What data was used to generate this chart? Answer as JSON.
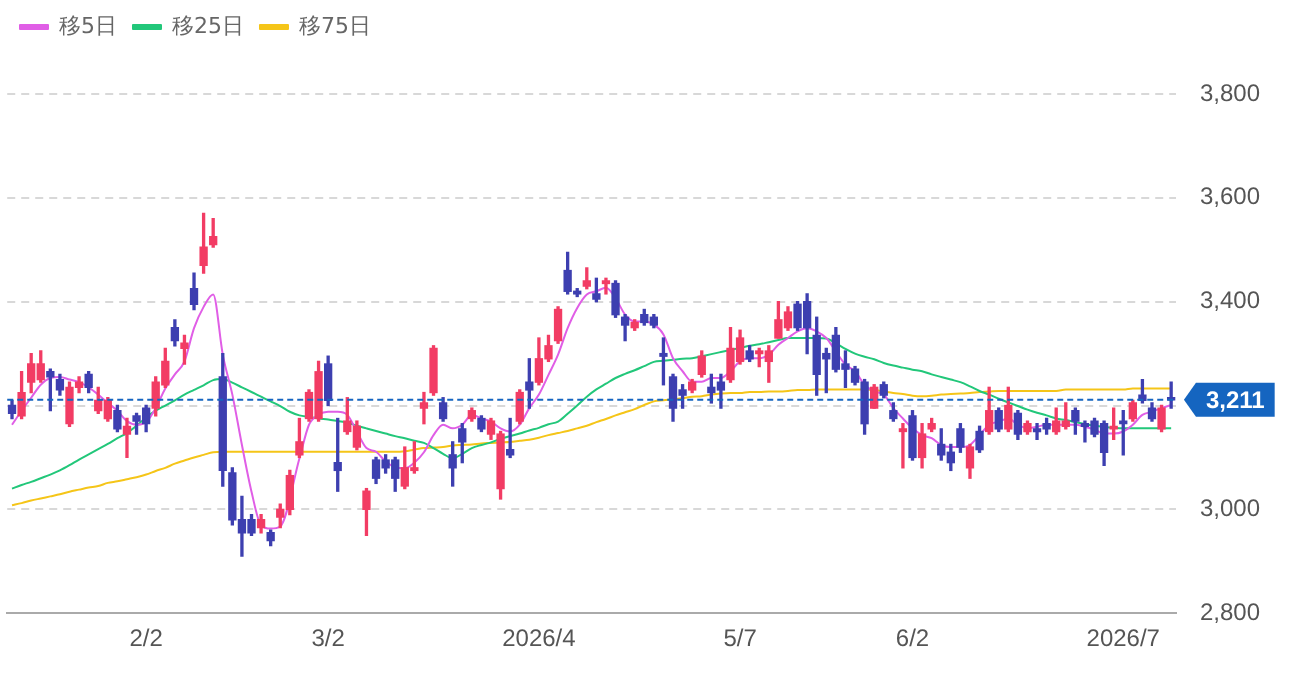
{
  "chart_data": {
    "type": "candlestick",
    "categories": [
      null,
      null,
      null,
      null,
      null,
      null,
      null,
      null,
      null,
      null,
      null,
      null,
      null,
      null,
      "2/2",
      null,
      null,
      null,
      null,
      null,
      null,
      null,
      null,
      null,
      null,
      null,
      null,
      null,
      null,
      null,
      null,
      null,
      null,
      "3/2",
      null,
      null,
      null,
      null,
      null,
      null,
      null,
      null,
      null,
      null,
      null,
      null,
      null,
      null,
      null,
      null,
      null,
      null,
      null,
      null,
      null,
      "2026/4",
      null,
      null,
      null,
      null,
      null,
      null,
      null,
      null,
      null,
      null,
      null,
      null,
      null,
      null,
      null,
      null,
      null,
      null,
      null,
      null,
      "5/7",
      null,
      null,
      null,
      null,
      null,
      null,
      null,
      null,
      null,
      null,
      null,
      null,
      null,
      null,
      null,
      null,
      null,
      "6/2",
      null,
      null,
      null,
      null,
      null,
      null,
      null,
      null,
      null,
      null,
      null,
      null,
      null,
      null,
      null,
      null,
      null,
      null,
      null,
      null,
      null,
      "2026/7",
      null,
      null,
      null,
      null,
      null
    ],
    "ohlc": [
      [
        3200,
        3210,
        3175,
        3185
      ],
      [
        3180,
        3265,
        3175,
        3225
      ],
      [
        3245,
        3300,
        3225,
        3280
      ],
      [
        3250,
        3305,
        3245,
        3280
      ],
      [
        3265,
        3270,
        3190,
        3255
      ],
      [
        3250,
        3260,
        3220,
        3230
      ],
      [
        3165,
        3245,
        3160,
        3235
      ],
      [
        3235,
        3255,
        3225,
        3245
      ],
      [
        3260,
        3265,
        3225,
        3235
      ],
      [
        3190,
        3235,
        3185,
        3210
      ],
      [
        3175,
        3215,
        3170,
        3210
      ],
      [
        3190,
        3200,
        3150,
        3155
      ],
      [
        3145,
        3175,
        3100,
        3160
      ],
      [
        3180,
        3185,
        3145,
        3170
      ],
      [
        3195,
        3200,
        3150,
        3165
      ],
      [
        3195,
        3255,
        3180,
        3245
      ],
      [
        3240,
        3310,
        3235,
        3285
      ],
      [
        3350,
        3365,
        3315,
        3325
      ],
      [
        3310,
        3335,
        3280,
        3320
      ],
      [
        3425,
        3455,
        3385,
        3395
      ],
      [
        3470,
        3570,
        3455,
        3505
      ],
      [
        3510,
        3560,
        3505,
        3525
      ],
      [
        3255,
        3300,
        3045,
        3075
      ],
      [
        3070,
        3080,
        2970,
        2980
      ],
      [
        2980,
        3025,
        2910,
        2955
      ],
      [
        2980,
        2990,
        2950,
        2955
      ],
      [
        2965,
        2990,
        2955,
        2980
      ],
      [
        2955,
        2960,
        2930,
        2940
      ],
      [
        2985,
        3010,
        2965,
        3000
      ],
      [
        3000,
        3075,
        2990,
        3065
      ],
      [
        3105,
        3175,
        3100,
        3130
      ],
      [
        3175,
        3230,
        3170,
        3225
      ],
      [
        3175,
        3285,
        3170,
        3265
      ],
      [
        3280,
        3295,
        3200,
        3210
      ],
      [
        3090,
        3175,
        3035,
        3075
      ],
      [
        3150,
        3215,
        3145,
        3170
      ],
      [
        3120,
        3170,
        3115,
        3160
      ],
      [
        3000,
        3040,
        2950,
        3035
      ],
      [
        3095,
        3100,
        3050,
        3060
      ],
      [
        3095,
        3105,
        3070,
        3080
      ],
      [
        3095,
        3100,
        3035,
        3060
      ],
      [
        3045,
        3120,
        3040,
        3080
      ],
      [
        3075,
        3130,
        3070,
        3080
      ],
      [
        3195,
        3225,
        3165,
        3205
      ],
      [
        3225,
        3315,
        3220,
        3310
      ],
      [
        3205,
        3215,
        3170,
        3175
      ],
      [
        3105,
        3130,
        3045,
        3080
      ],
      [
        3155,
        3165,
        3090,
        3130
      ],
      [
        3175,
        3195,
        3170,
        3190
      ],
      [
        3175,
        3180,
        3150,
        3155
      ],
      [
        3145,
        3175,
        3135,
        3170
      ],
      [
        3040,
        3150,
        3020,
        3145
      ],
      [
        3115,
        3175,
        3100,
        3105
      ],
      [
        3170,
        3230,
        3165,
        3225
      ],
      [
        3245,
        3290,
        3195,
        3230
      ],
      [
        3245,
        3330,
        3240,
        3290
      ],
      [
        3290,
        3335,
        3285,
        3315
      ],
      [
        3325,
        3390,
        3320,
        3385
      ],
      [
        3460,
        3495,
        3415,
        3420
      ],
      [
        3420,
        3425,
        3410,
        3415
      ],
      [
        3430,
        3465,
        3425,
        3440
      ],
      [
        3415,
        3445,
        3400,
        3405
      ],
      [
        3435,
        3445,
        3415,
        3440
      ],
      [
        3435,
        3440,
        3370,
        3375
      ],
      [
        3370,
        3375,
        3325,
        3355
      ],
      [
        3350,
        3365,
        3345,
        3360
      ],
      [
        3375,
        3385,
        3355,
        3360
      ],
      [
        3370,
        3375,
        3350,
        3355
      ],
      [
        3300,
        3330,
        3240,
        3295
      ],
      [
        3255,
        3260,
        3170,
        3195
      ],
      [
        3230,
        3240,
        3195,
        3220
      ],
      [
        3230,
        3250,
        3225,
        3245
      ],
      [
        3260,
        3305,
        3255,
        3295
      ],
      [
        3235,
        3260,
        3205,
        3225
      ],
      [
        3245,
        3260,
        3195,
        3230
      ],
      [
        3250,
        3350,
        3245,
        3310
      ],
      [
        3285,
        3345,
        3280,
        3330
      ],
      [
        3305,
        3315,
        3285,
        3290
      ],
      [
        3300,
        3310,
        3275,
        3305
      ],
      [
        3285,
        3315,
        3245,
        3305
      ],
      [
        3330,
        3400,
        3330,
        3365
      ],
      [
        3350,
        3390,
        3345,
        3380
      ],
      [
        3395,
        3400,
        3345,
        3350
      ],
      [
        3400,
        3415,
        3300,
        3350
      ],
      [
        3335,
        3370,
        3220,
        3260
      ],
      [
        3300,
        3310,
        3225,
        3290
      ],
      [
        3335,
        3350,
        3265,
        3270
      ],
      [
        3280,
        3305,
        3235,
        3270
      ],
      [
        3270,
        3275,
        3240,
        3245
      ],
      [
        3245,
        3250,
        3145,
        3165
      ],
      [
        3195,
        3240,
        3195,
        3235
      ],
      [
        3240,
        3245,
        3215,
        3220
      ],
      [
        3190,
        3205,
        3170,
        3175
      ],
      [
        3150,
        3165,
        3080,
        3155
      ],
      [
        3180,
        3190,
        3095,
        3100
      ],
      [
        3100,
        3165,
        3080,
        3145
      ],
      [
        3155,
        3175,
        3150,
        3165
      ],
      [
        3125,
        3155,
        3095,
        3105
      ],
      [
        3110,
        3125,
        3075,
        3090
      ],
      [
        3155,
        3165,
        3110,
        3120
      ],
      [
        3080,
        3125,
        3060,
        3120
      ],
      [
        3150,
        3160,
        3110,
        3115
      ],
      [
        3150,
        3235,
        3145,
        3190
      ],
      [
        3190,
        3195,
        3150,
        3155
      ],
      [
        3155,
        3235,
        3150,
        3200
      ],
      [
        3185,
        3190,
        3135,
        3145
      ],
      [
        3150,
        3170,
        3145,
        3165
      ],
      [
        3155,
        3165,
        3135,
        3150
      ],
      [
        3165,
        3175,
        3145,
        3155
      ],
      [
        3150,
        3195,
        3145,
        3170
      ],
      [
        3160,
        3205,
        3155,
        3170
      ],
      [
        3190,
        3195,
        3145,
        3170
      ],
      [
        3165,
        3170,
        3130,
        3160
      ],
      [
        3170,
        3175,
        3140,
        3145
      ],
      [
        3165,
        3170,
        3085,
        3110
      ],
      [
        3155,
        3195,
        3135,
        3160
      ],
      [
        3170,
        3190,
        3105,
        3165
      ],
      [
        3175,
        3210,
        3170,
        3205
      ],
      [
        3220,
        3250,
        3205,
        3210
      ],
      [
        3195,
        3205,
        3170,
        3175
      ],
      [
        3155,
        3200,
        3150,
        3195
      ],
      [
        3215,
        3245,
        3195,
        3211
      ]
    ],
    "colors": [
      "#3d3fb0",
      "#f23c64",
      "#f23c64",
      "#f23c64",
      "#3d3fb0",
      "#3d3fb0",
      "#f23c64",
      "#f23c64",
      "#3d3fb0",
      "#f23c64",
      "#f23c64",
      "#3d3fb0",
      "#f23c64",
      "#3d3fb0",
      "#3d3fb0",
      "#f23c64",
      "#f23c64",
      "#3d3fb0",
      "#f23c64",
      "#3d3fb0",
      "#f23c64",
      "#f23c64",
      "#3d3fb0",
      "#3d3fb0",
      "#3d3fb0",
      "#3d3fb0",
      "#f23c64",
      "#3d3fb0",
      "#f23c64",
      "#f23c64",
      "#f23c64",
      "#f23c64",
      "#f23c64",
      "#3d3fb0",
      "#3d3fb0",
      "#f23c64",
      "#f23c64",
      "#f23c64",
      "#3d3fb0",
      "#3d3fb0",
      "#3d3fb0",
      "#f23c64",
      "#f23c64",
      "#f23c64",
      "#f23c64",
      "#3d3fb0",
      "#3d3fb0",
      "#3d3fb0",
      "#f23c64",
      "#3d3fb0",
      "#f23c64",
      "#f23c64",
      "#3d3fb0",
      "#f23c64",
      "#3d3fb0",
      "#f23c64",
      "#f23c64",
      "#f23c64",
      "#3d3fb0",
      "#3d3fb0",
      "#f23c64",
      "#3d3fb0",
      "#f23c64",
      "#3d3fb0",
      "#3d3fb0",
      "#f23c64",
      "#3d3fb0",
      "#3d3fb0",
      "#3d3fb0",
      "#3d3fb0",
      "#3d3fb0",
      "#f23c64",
      "#f23c64",
      "#3d3fb0",
      "#3d3fb0",
      "#f23c64",
      "#f23c64",
      "#3d3fb0",
      "#f23c64",
      "#f23c64",
      "#f23c64",
      "#f23c64",
      "#3d3fb0",
      "#3d3fb0",
      "#3d3fb0",
      "#3d3fb0",
      "#3d3fb0",
      "#3d3fb0",
      "#3d3fb0",
      "#3d3fb0",
      "#f23c64",
      "#3d3fb0",
      "#3d3fb0",
      "#f23c64",
      "#3d3fb0",
      "#f23c64",
      "#f23c64",
      "#3d3fb0",
      "#3d3fb0",
      "#3d3fb0",
      "#f23c64",
      "#3d3fb0",
      "#f23c64",
      "#3d3fb0",
      "#f23c64",
      "#3d3fb0",
      "#f23c64",
      "#3d3fb0",
      "#3d3fb0",
      "#f23c64",
      "#f23c64",
      "#3d3fb0",
      "#3d3fb0",
      "#3d3fb0",
      "#3d3fb0",
      "#f23c64",
      "#3d3fb0",
      "#f23c64",
      "#3d3fb0",
      "#3d3fb0",
      "#f23c64",
      "#3d3fb0"
    ],
    "series": [
      {
        "name": "移5日",
        "type": "line",
        "color": "#e05ee6",
        "values": [
          3163,
          3190,
          3215,
          3240,
          3253,
          3255,
          3250,
          3245,
          3235,
          3221,
          3205,
          3190,
          3170,
          3163,
          3168,
          3195,
          3233,
          3260,
          3285,
          3349,
          3390,
          3414,
          3298,
          3221,
          3124,
          3034,
          2969,
          2963,
          2967,
          null,
          3098,
          3163,
          3182,
          3188,
          3188,
          3182,
          3150,
          3118,
          3111,
          3092,
          3081,
          3079,
          3090,
          3110,
          3143,
          3163,
          3156,
          3163,
          3182,
          3175,
          3169,
          3156,
          3150,
          3163,
          3195,
          3221,
          3259,
          3298,
          3349,
          3388,
          3414,
          3420,
          3427,
          3407,
          3375,
          3362,
          3362,
          3356,
          3337,
          3291,
          3266,
          3246,
          3246,
          3253,
          3253,
          3266,
          3285,
          3291,
          3291,
          3298,
          3317,
          3330,
          3343,
          3349,
          3343,
          3330,
          3304,
          3279,
          3266,
          3240,
          3227,
          3221,
          3195,
          3175,
          3156,
          3143,
          3137,
          3124,
          3120,
          3120,
          3124,
          3143,
          3163,
          3169,
          3175,
          3163,
          3156,
          3159,
          3163,
          3163,
          3163,
          3163,
          3159,
          3154,
          3146,
          3146,
          3150,
          3163,
          3182,
          3188,
          3195,
          3201
        ]
      },
      {
        "name": "移25日",
        "type": "line",
        "color": "#22c77a",
        "values": [
          3040,
          3047,
          3053,
          3060,
          3067,
          3075,
          3085,
          3096,
          3106,
          3116,
          3126,
          3137,
          3147,
          3161,
          3177,
          3190,
          3200,
          3210,
          3221,
          3230,
          3239,
          3249,
          3251,
          3244,
          3235,
          3226,
          3217,
          3208,
          3199,
          3188,
          3181,
          3178,
          3175,
          3173,
          3170,
          3167,
          3161,
          3156,
          3151,
          3146,
          3141,
          3137,
          3132,
          3128,
          3118,
          3107,
          3098,
          3107,
          3118,
          3124,
          3129,
          3136,
          3141,
          3146,
          3152,
          3157,
          3164,
          3169,
          3184,
          3200,
          3217,
          3231,
          3242,
          3253,
          3261,
          3268,
          3276,
          3284,
          3286,
          3288,
          3290,
          3291,
          3295,
          3299,
          3303,
          3307,
          3311,
          3315,
          3318,
          3322,
          3326,
          3330,
          3330,
          3330,
          3330,
          3329,
          3320,
          3309,
          3300,
          3294,
          3289,
          3282,
          3277,
          3273,
          3269,
          3266,
          3260,
          3255,
          3250,
          3245,
          3237,
          3228,
          3221,
          3213,
          3206,
          3199,
          3192,
          3186,
          3181,
          3175,
          3172,
          3168,
          3164,
          3161,
          3159,
          3157,
          3156,
          3156,
          3156,
          3156,
          3156,
          3156
        ]
      },
      {
        "name": "移75日",
        "type": "line",
        "color": "#f5c518",
        "values": [
          3008,
          3012,
          3017,
          3021,
          3025,
          3029,
          3034,
          3038,
          3042,
          3045,
          3051,
          3054,
          3058,
          3062,
          3067,
          3074,
          3080,
          3088,
          3094,
          3100,
          3105,
          3110,
          3111,
          3111,
          3111,
          3111,
          3111,
          3111,
          3111,
          3111,
          3111,
          3111,
          3111,
          3111,
          3111,
          3111,
          3111,
          3111,
          3111,
          3111,
          3111,
          3112,
          3115,
          3118,
          3119,
          3120,
          3123,
          3124,
          3125,
          3127,
          3128,
          3129,
          3130,
          3132,
          3134,
          3138,
          3143,
          3147,
          3151,
          3156,
          3161,
          3168,
          3174,
          3181,
          3187,
          3193,
          3201,
          3208,
          3210,
          3212,
          3214,
          3217,
          3218,
          3221,
          3223,
          3224,
          3224,
          3226,
          3226,
          3227,
          3227,
          3228,
          3230,
          3230,
          3231,
          3231,
          3231,
          3231,
          3231,
          3231,
          3230,
          3227,
          3224,
          3222,
          3219,
          3218,
          3219,
          3221,
          3222,
          3223,
          3224,
          3226,
          3227,
          3228,
          3228,
          3228,
          3228,
          3228,
          3228,
          3228,
          3231,
          3231,
          3231,
          3231,
          3231,
          3231,
          3231,
          3233,
          3233,
          3233,
          3233,
          3233
        ]
      }
    ],
    "ylim": [
      2800,
      3800
    ],
    "yticks": [
      {
        "value": 2800,
        "label": "2,800"
      },
      {
        "value": 3000,
        "label": "3,000"
      },
      {
        "value": 3200,
        "label": null
      },
      {
        "value": 3400,
        "label": "3,400"
      },
      {
        "value": 3600,
        "label": "3,600"
      },
      {
        "value": 3800,
        "label": "3,800"
      }
    ],
    "grid": "y",
    "legend": "top left",
    "ref_lines": [
      {
        "axis": "y",
        "value": 3211,
        "label": "3,211",
        "color": "#1565c0",
        "line_style": "dashed"
      }
    ]
  }
}
